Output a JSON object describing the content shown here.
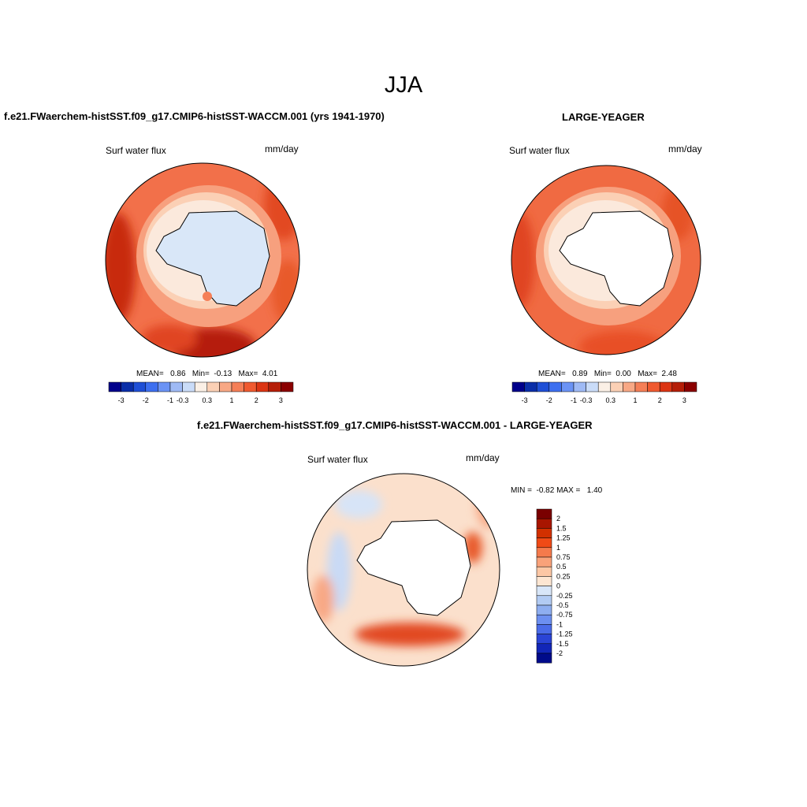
{
  "title": "JJA",
  "panels": [
    {
      "title": "f.e21.FWaerchem-histSST.f09_g17.CMIP6-histSST-WACCM.001 (yrs 1941-1970)",
      "variable": "Surf water flux",
      "units": "mm/day",
      "stats": {
        "mean_label": "MEAN=",
        "mean": "0.86",
        "min_label": "Min=",
        "min": "-0.13",
        "max_label": "Max=",
        "max": "4.01"
      }
    },
    {
      "title": "LARGE-YEAGER",
      "variable": "Surf water flux",
      "units": "mm/day",
      "stats": {
        "mean_label": "MEAN=",
        "mean": "0.89",
        "min_label": "Min=",
        "min": "0.00",
        "max_label": "Max=",
        "max": "2.48"
      }
    },
    {
      "title": "f.e21.FWaerchem-histSST.f09_g17.CMIP6-histSST-WACCM.001 - LARGE-YEAGER",
      "variable": "Surf water flux",
      "units": "mm/day",
      "stats": {
        "min_label": "MIN =",
        "min": "-0.82",
        "max_label": "MAX =",
        "max": "1.40"
      }
    }
  ],
  "horizontal_colorbar": {
    "colors": [
      "#00008b",
      "#0a2ea8",
      "#1f4fd6",
      "#3d6ff0",
      "#6b93f5",
      "#9fbaf5",
      "#cadcf8",
      "#fbf0e6",
      "#fbd0b5",
      "#f8a885",
      "#f57f57",
      "#f05a30",
      "#dc3513",
      "#b51e08",
      "#8b0000"
    ],
    "tick_labels": [
      "-3",
      "-2",
      "-1",
      "-0.3",
      "0.3",
      "1",
      "2",
      "3"
    ]
  },
  "vertical_colorbar": {
    "colors": [
      "#7a0000",
      "#a81500",
      "#d23000",
      "#f04a16",
      "#f57a4c",
      "#f9a27a",
      "#fcc7a5",
      "#fde6d2",
      "#d8e6f8",
      "#b2cbf3",
      "#8eaef0",
      "#6c8ff0",
      "#4a6be8",
      "#2a44d6",
      "#1226b8",
      "#000b8a"
    ],
    "tick_labels": [
      "2",
      "1.5",
      "1.25",
      "1",
      "0.75",
      "0.5",
      "0.25",
      "0",
      "-0.25",
      "-0.5",
      "-0.75",
      "-1",
      "-1.25",
      "-1.5",
      "-2"
    ]
  }
}
